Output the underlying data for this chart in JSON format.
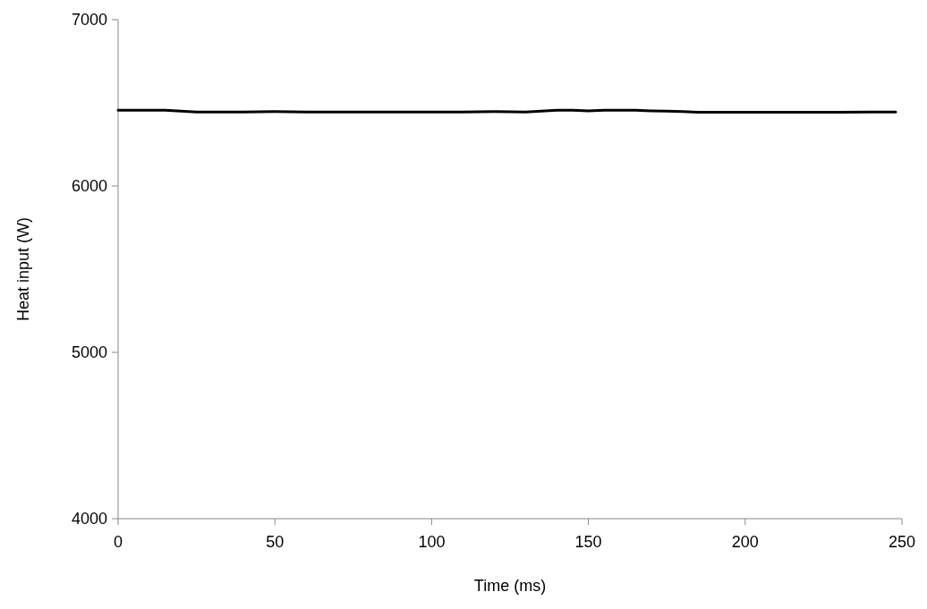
{
  "chart_data": {
    "type": "line",
    "xlabel": "Time (ms)",
    "ylabel": "Heat input (W)",
    "x": [
      0,
      5,
      10,
      15,
      20,
      25,
      30,
      40,
      50,
      60,
      70,
      80,
      90,
      100,
      110,
      120,
      130,
      135,
      140,
      145,
      150,
      155,
      160,
      165,
      170,
      175,
      180,
      185,
      190,
      200,
      210,
      220,
      230,
      240,
      248
    ],
    "series": [
      {
        "color": "#000000",
        "values": [
          6455,
          6455,
          6455,
          6455,
          6450,
          6445,
          6445,
          6445,
          6447,
          6445,
          6445,
          6445,
          6445,
          6445,
          6445,
          6447,
          6445,
          6450,
          6455,
          6455,
          6452,
          6455,
          6455,
          6455,
          6452,
          6450,
          6447,
          6443,
          6443,
          6443,
          6443,
          6443,
          6443,
          6445,
          6445
        ]
      }
    ],
    "xlim": [
      0,
      250
    ],
    "ylim": [
      4000,
      7000
    ],
    "xticks": [
      0,
      50,
      100,
      150,
      200,
      250
    ],
    "yticks": [
      4000,
      5000,
      6000,
      7000
    ],
    "marker": "none",
    "line_style": "solid"
  }
}
